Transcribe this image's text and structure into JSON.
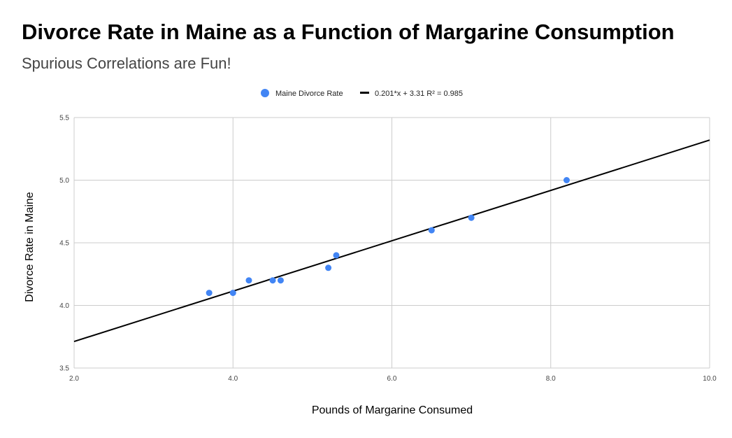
{
  "chart_data": {
    "type": "scatter",
    "title": "Divorce Rate in Maine as a Function of Margarine Consumption",
    "subtitle": "Spurious Correlations are Fun!",
    "xlabel": "Pounds of Margarine Consumed",
    "ylabel": "Divorce Rate in Maine",
    "xlim": [
      2.0,
      10.0
    ],
    "ylim": [
      3.5,
      5.5
    ],
    "xticks": [
      "2.0",
      "4.0",
      "6.0",
      "8.0",
      "10.0"
    ],
    "yticks": [
      "3.5",
      "4.0",
      "4.5",
      "5.0",
      "5.5"
    ],
    "grid": true,
    "legend_position": "top-center",
    "series": [
      {
        "name": "Maine Divorce Rate",
        "color": "#4285f4",
        "x": [
          3.7,
          4.0,
          4.2,
          4.5,
          4.6,
          5.2,
          5.3,
          6.5,
          7.0,
          8.2
        ],
        "y": [
          4.1,
          4.1,
          4.2,
          4.2,
          4.2,
          4.3,
          4.4,
          4.6,
          4.7,
          5.0
        ]
      }
    ],
    "trendline": {
      "label": "0.201*x + 3.31 R² = 0.985",
      "slope": 0.201,
      "intercept": 3.31,
      "color": "#000000"
    }
  }
}
